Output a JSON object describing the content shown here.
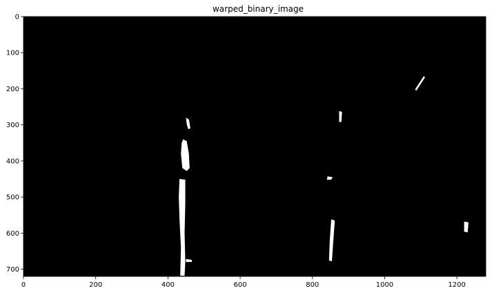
{
  "figure": {
    "title": "warped_binary_image",
    "background": "#000000",
    "foreground": "#ffffff",
    "image_width": 1280,
    "image_height": 720
  },
  "axes": {
    "x_ticks": [
      0,
      200,
      400,
      600,
      800,
      1000,
      1200
    ],
    "y_ticks": [
      0,
      100,
      200,
      300,
      400,
      500,
      600,
      700
    ]
  },
  "white_regions": [
    {
      "name": "left-lane-upper-blob",
      "points": [
        [
          442,
          340
        ],
        [
          452,
          345
        ],
        [
          458,
          380
        ],
        [
          460,
          420
        ],
        [
          452,
          428
        ],
        [
          440,
          420
        ],
        [
          436,
          380
        ],
        [
          438,
          350
        ]
      ]
    },
    {
      "name": "left-lane-lower-line",
      "points": [
        [
          432,
          450
        ],
        [
          448,
          452
        ],
        [
          448,
          520
        ],
        [
          446,
          600
        ],
        [
          448,
          680
        ],
        [
          446,
          718
        ],
        [
          434,
          718
        ],
        [
          436,
          640
        ],
        [
          432,
          560
        ],
        [
          430,
          500
        ]
      ]
    },
    {
      "name": "left-lane-top-fleck",
      "points": [
        [
          450,
          280
        ],
        [
          458,
          285
        ],
        [
          460,
          295
        ],
        [
          462,
          310
        ],
        [
          456,
          312
        ],
        [
          452,
          298
        ]
      ]
    },
    {
      "name": "left-lane-bottom-fleck",
      "points": [
        [
          450,
          672
        ],
        [
          466,
          674
        ],
        [
          466,
          680
        ],
        [
          450,
          680
        ]
      ]
    },
    {
      "name": "right-lane-lower-line",
      "points": [
        [
          852,
          562
        ],
        [
          862,
          565
        ],
        [
          858,
          620
        ],
        [
          854,
          678
        ],
        [
          846,
          676
        ],
        [
          848,
          620
        ]
      ]
    },
    {
      "name": "right-lane-mid-fleck",
      "points": [
        [
          842,
          443
        ],
        [
          856,
          445
        ],
        [
          852,
          452
        ],
        [
          840,
          452
        ]
      ]
    },
    {
      "name": "right-lane-upper-fleck",
      "points": [
        [
          874,
          262
        ],
        [
          882,
          264
        ],
        [
          880,
          292
        ],
        [
          874,
          292
        ]
      ]
    },
    {
      "name": "top-right-diagonal-line",
      "points": [
        [
          1108,
          165
        ],
        [
          1112,
          168
        ],
        [
          1088,
          205
        ],
        [
          1084,
          202
        ]
      ]
    },
    {
      "name": "far-right-fleck",
      "points": [
        [
          1220,
          568
        ],
        [
          1232,
          570
        ],
        [
          1230,
          598
        ],
        [
          1220,
          596
        ]
      ]
    }
  ]
}
